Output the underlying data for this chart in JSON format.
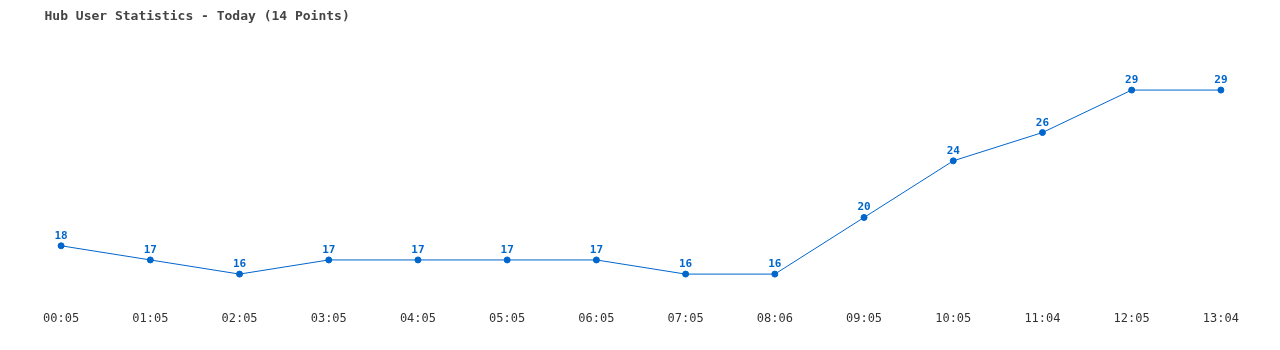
{
  "chart_data": {
    "type": "line",
    "title": "Hub User Statistics - Today (14 Points)",
    "categories": [
      "00:05",
      "01:05",
      "02:05",
      "03:05",
      "04:05",
      "05:05",
      "06:05",
      "07:05",
      "08:06",
      "09:05",
      "10:05",
      "11:04",
      "12:05",
      "13:04"
    ],
    "series": [
      {
        "color": "#0066cc",
        "values": [
          18,
          17,
          16,
          17,
          17,
          17,
          17,
          16,
          16,
          20,
          24,
          26,
          29,
          29
        ]
      }
    ],
    "data_labels": true,
    "marker": "circle",
    "grid": false
  }
}
